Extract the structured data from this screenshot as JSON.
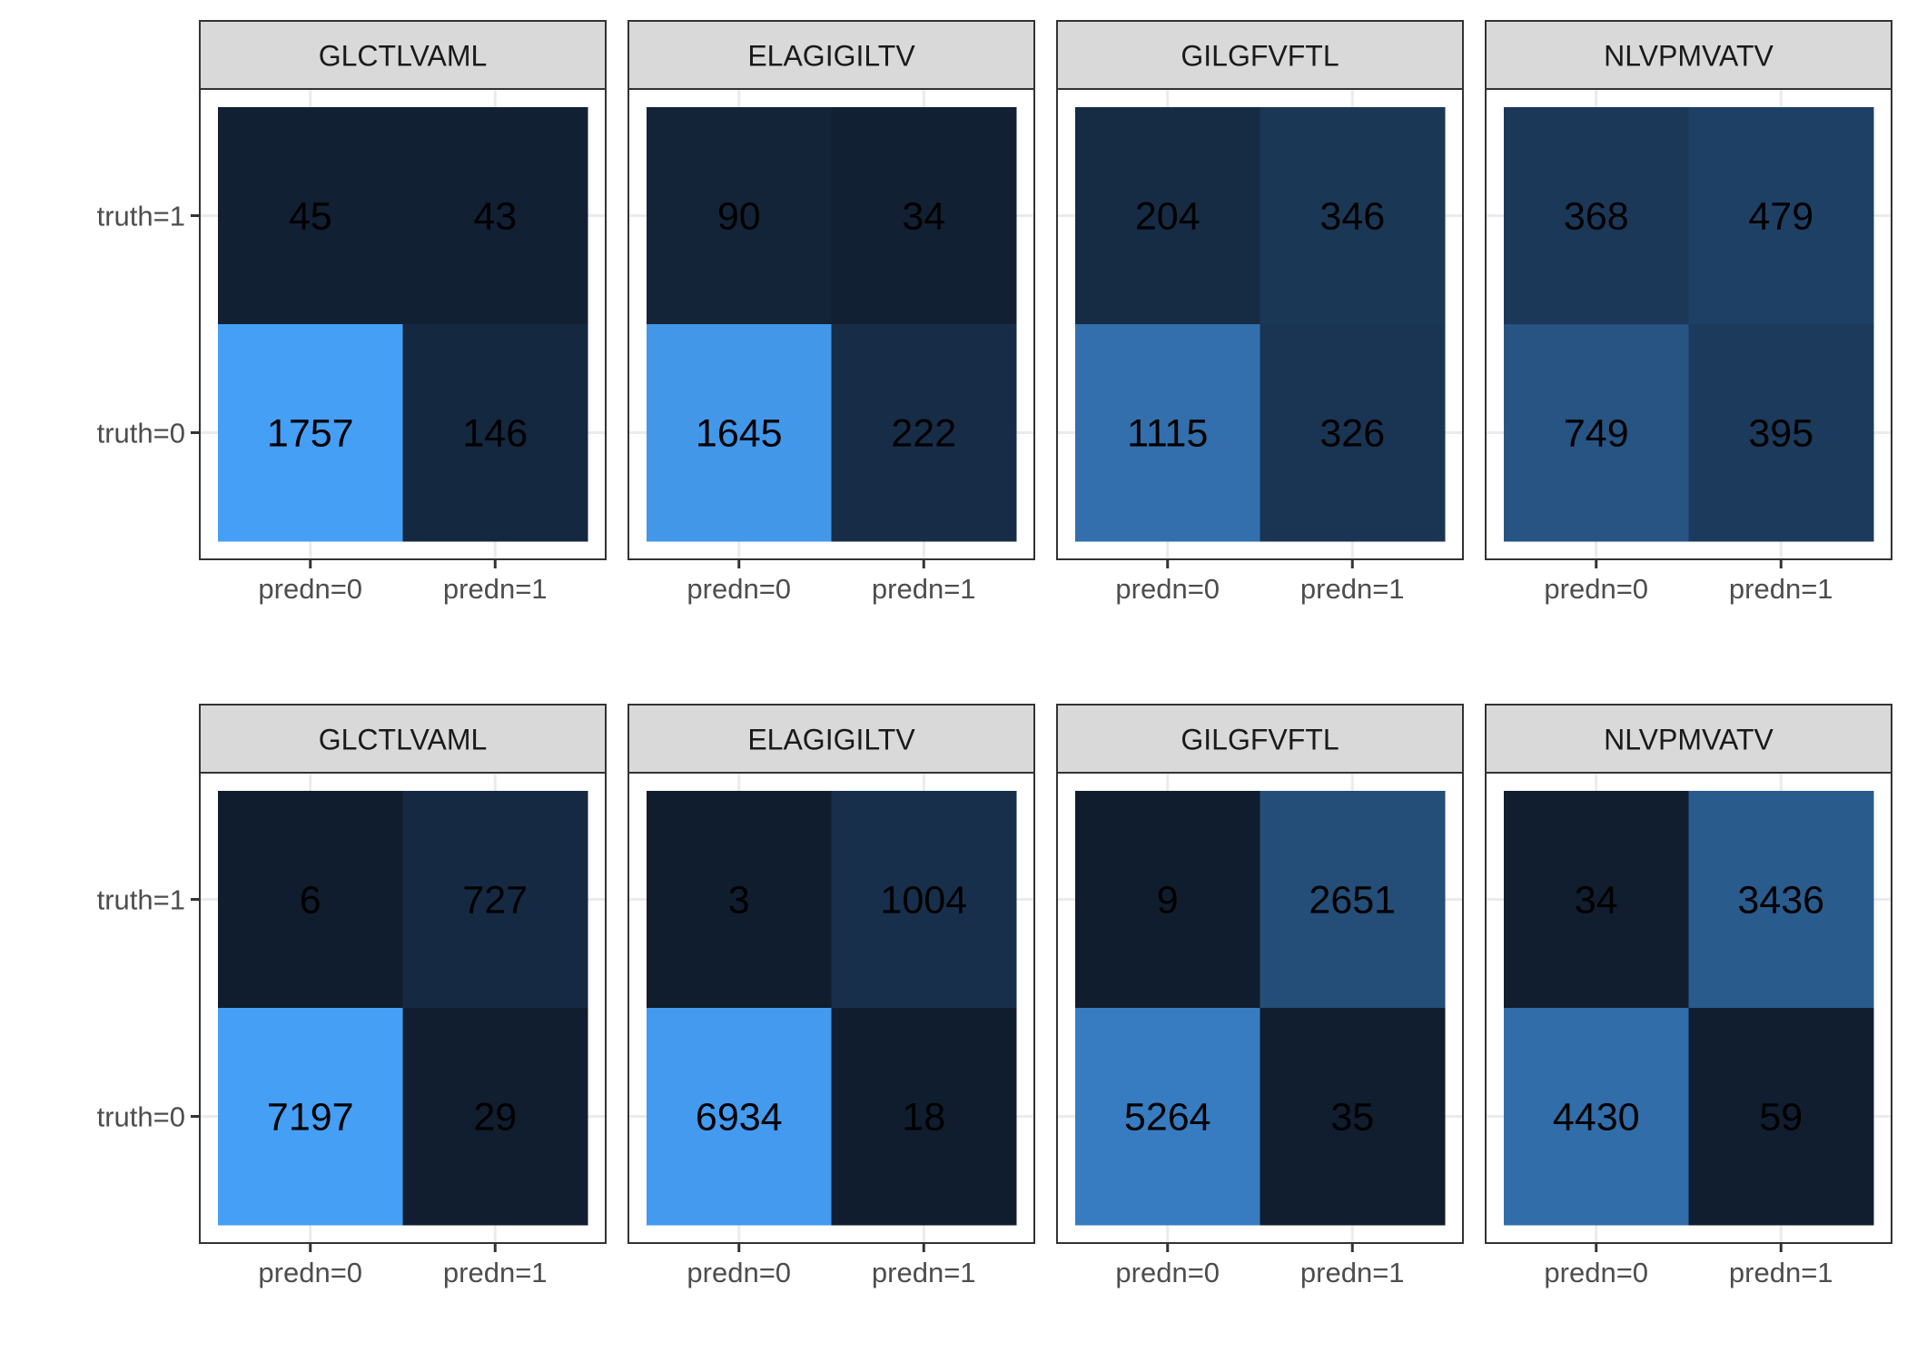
{
  "chart_data": [
    {
      "type": "heatmap",
      "title": "",
      "row": 1,
      "x_categories": [
        "predn=0",
        "predn=1"
      ],
      "y_categories": [
        "truth=1",
        "truth=0"
      ],
      "legend": "none",
      "grid": true,
      "panels": [
        {
          "strip": "GLCTLVAML",
          "values": [
            [
              45,
              43
            ],
            [
              1757,
              146
            ]
          ]
        },
        {
          "strip": "ELAGIGILTV",
          "values": [
            [
              90,
              34
            ],
            [
              1645,
              222
            ]
          ]
        },
        {
          "strip": "GILGFVFTL",
          "values": [
            [
              204,
              346
            ],
            [
              1115,
              326
            ]
          ]
        },
        {
          "strip": "NLVPMVATV",
          "values": [
            [
              368,
              479
            ],
            [
              749,
              395
            ]
          ]
        }
      ]
    },
    {
      "type": "heatmap",
      "title": "",
      "row": 2,
      "x_categories": [
        "predn=0",
        "predn=1"
      ],
      "y_categories": [
        "truth=1",
        "truth=0"
      ],
      "legend": "none",
      "grid": true,
      "panels": [
        {
          "strip": "GLCTLVAML",
          "values": [
            [
              6,
              727
            ],
            [
              7197,
              29
            ]
          ]
        },
        {
          "strip": "ELAGIGILTV",
          "values": [
            [
              3,
              1004
            ],
            [
              6934,
              18
            ]
          ]
        },
        {
          "strip": "GILGFVFTL",
          "values": [
            [
              9,
              2651
            ],
            [
              5264,
              35
            ]
          ]
        },
        {
          "strip": "NLVPMVATV",
          "values": [
            [
              34,
              3436
            ],
            [
              4430,
              59
            ]
          ]
        }
      ]
    }
  ],
  "colors": {
    "low": "#101d2e",
    "high": "#459ff5",
    "strip_fill": "#d9d9d9",
    "panel_border": "#333333",
    "grid": "#ebebeb",
    "text": "#000000",
    "axis_text": "#4d4d4d"
  }
}
